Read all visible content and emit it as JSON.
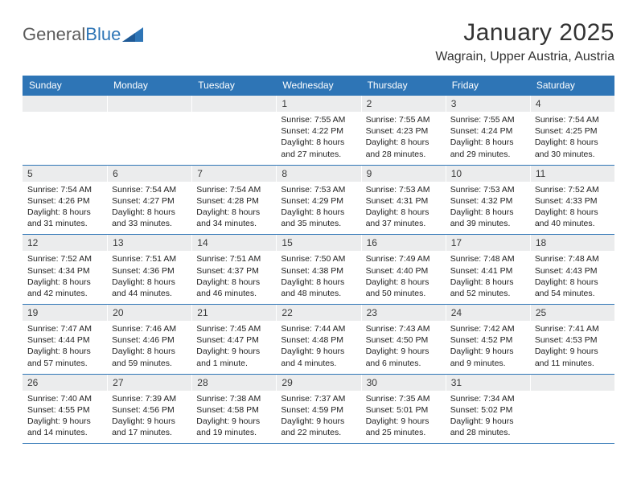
{
  "brand": {
    "name1": "General",
    "name2": "Blue"
  },
  "title": "January 2025",
  "location": "Wagrain, Upper Austria, Austria",
  "theme": {
    "header_bg": "#2e75b6",
    "header_text": "#ffffff",
    "daynum_bg": "#ebeced",
    "rule": "#2e75b6",
    "body_text": "#222222"
  },
  "day_names": [
    "Sunday",
    "Monday",
    "Tuesday",
    "Wednesday",
    "Thursday",
    "Friday",
    "Saturday"
  ],
  "weeks": [
    [
      {
        "n": "",
        "sr": "",
        "ss": "",
        "dl": ""
      },
      {
        "n": "",
        "sr": "",
        "ss": "",
        "dl": ""
      },
      {
        "n": "",
        "sr": "",
        "ss": "",
        "dl": ""
      },
      {
        "n": "1",
        "sr": "Sunrise: 7:55 AM",
        "ss": "Sunset: 4:22 PM",
        "dl": "Daylight: 8 hours and 27 minutes."
      },
      {
        "n": "2",
        "sr": "Sunrise: 7:55 AM",
        "ss": "Sunset: 4:23 PM",
        "dl": "Daylight: 8 hours and 28 minutes."
      },
      {
        "n": "3",
        "sr": "Sunrise: 7:55 AM",
        "ss": "Sunset: 4:24 PM",
        "dl": "Daylight: 8 hours and 29 minutes."
      },
      {
        "n": "4",
        "sr": "Sunrise: 7:54 AM",
        "ss": "Sunset: 4:25 PM",
        "dl": "Daylight: 8 hours and 30 minutes."
      }
    ],
    [
      {
        "n": "5",
        "sr": "Sunrise: 7:54 AM",
        "ss": "Sunset: 4:26 PM",
        "dl": "Daylight: 8 hours and 31 minutes."
      },
      {
        "n": "6",
        "sr": "Sunrise: 7:54 AM",
        "ss": "Sunset: 4:27 PM",
        "dl": "Daylight: 8 hours and 33 minutes."
      },
      {
        "n": "7",
        "sr": "Sunrise: 7:54 AM",
        "ss": "Sunset: 4:28 PM",
        "dl": "Daylight: 8 hours and 34 minutes."
      },
      {
        "n": "8",
        "sr": "Sunrise: 7:53 AM",
        "ss": "Sunset: 4:29 PM",
        "dl": "Daylight: 8 hours and 35 minutes."
      },
      {
        "n": "9",
        "sr": "Sunrise: 7:53 AM",
        "ss": "Sunset: 4:31 PM",
        "dl": "Daylight: 8 hours and 37 minutes."
      },
      {
        "n": "10",
        "sr": "Sunrise: 7:53 AM",
        "ss": "Sunset: 4:32 PM",
        "dl": "Daylight: 8 hours and 39 minutes."
      },
      {
        "n": "11",
        "sr": "Sunrise: 7:52 AM",
        "ss": "Sunset: 4:33 PM",
        "dl": "Daylight: 8 hours and 40 minutes."
      }
    ],
    [
      {
        "n": "12",
        "sr": "Sunrise: 7:52 AM",
        "ss": "Sunset: 4:34 PM",
        "dl": "Daylight: 8 hours and 42 minutes."
      },
      {
        "n": "13",
        "sr": "Sunrise: 7:51 AM",
        "ss": "Sunset: 4:36 PM",
        "dl": "Daylight: 8 hours and 44 minutes."
      },
      {
        "n": "14",
        "sr": "Sunrise: 7:51 AM",
        "ss": "Sunset: 4:37 PM",
        "dl": "Daylight: 8 hours and 46 minutes."
      },
      {
        "n": "15",
        "sr": "Sunrise: 7:50 AM",
        "ss": "Sunset: 4:38 PM",
        "dl": "Daylight: 8 hours and 48 minutes."
      },
      {
        "n": "16",
        "sr": "Sunrise: 7:49 AM",
        "ss": "Sunset: 4:40 PM",
        "dl": "Daylight: 8 hours and 50 minutes."
      },
      {
        "n": "17",
        "sr": "Sunrise: 7:48 AM",
        "ss": "Sunset: 4:41 PM",
        "dl": "Daylight: 8 hours and 52 minutes."
      },
      {
        "n": "18",
        "sr": "Sunrise: 7:48 AM",
        "ss": "Sunset: 4:43 PM",
        "dl": "Daylight: 8 hours and 54 minutes."
      }
    ],
    [
      {
        "n": "19",
        "sr": "Sunrise: 7:47 AM",
        "ss": "Sunset: 4:44 PM",
        "dl": "Daylight: 8 hours and 57 minutes."
      },
      {
        "n": "20",
        "sr": "Sunrise: 7:46 AM",
        "ss": "Sunset: 4:46 PM",
        "dl": "Daylight: 8 hours and 59 minutes."
      },
      {
        "n": "21",
        "sr": "Sunrise: 7:45 AM",
        "ss": "Sunset: 4:47 PM",
        "dl": "Daylight: 9 hours and 1 minute."
      },
      {
        "n": "22",
        "sr": "Sunrise: 7:44 AM",
        "ss": "Sunset: 4:48 PM",
        "dl": "Daylight: 9 hours and 4 minutes."
      },
      {
        "n": "23",
        "sr": "Sunrise: 7:43 AM",
        "ss": "Sunset: 4:50 PM",
        "dl": "Daylight: 9 hours and 6 minutes."
      },
      {
        "n": "24",
        "sr": "Sunrise: 7:42 AM",
        "ss": "Sunset: 4:52 PM",
        "dl": "Daylight: 9 hours and 9 minutes."
      },
      {
        "n": "25",
        "sr": "Sunrise: 7:41 AM",
        "ss": "Sunset: 4:53 PM",
        "dl": "Daylight: 9 hours and 11 minutes."
      }
    ],
    [
      {
        "n": "26",
        "sr": "Sunrise: 7:40 AM",
        "ss": "Sunset: 4:55 PM",
        "dl": "Daylight: 9 hours and 14 minutes."
      },
      {
        "n": "27",
        "sr": "Sunrise: 7:39 AM",
        "ss": "Sunset: 4:56 PM",
        "dl": "Daylight: 9 hours and 17 minutes."
      },
      {
        "n": "28",
        "sr": "Sunrise: 7:38 AM",
        "ss": "Sunset: 4:58 PM",
        "dl": "Daylight: 9 hours and 19 minutes."
      },
      {
        "n": "29",
        "sr": "Sunrise: 7:37 AM",
        "ss": "Sunset: 4:59 PM",
        "dl": "Daylight: 9 hours and 22 minutes."
      },
      {
        "n": "30",
        "sr": "Sunrise: 7:35 AM",
        "ss": "Sunset: 5:01 PM",
        "dl": "Daylight: 9 hours and 25 minutes."
      },
      {
        "n": "31",
        "sr": "Sunrise: 7:34 AM",
        "ss": "Sunset: 5:02 PM",
        "dl": "Daylight: 9 hours and 28 minutes."
      },
      {
        "n": "",
        "sr": "",
        "ss": "",
        "dl": ""
      }
    ]
  ]
}
